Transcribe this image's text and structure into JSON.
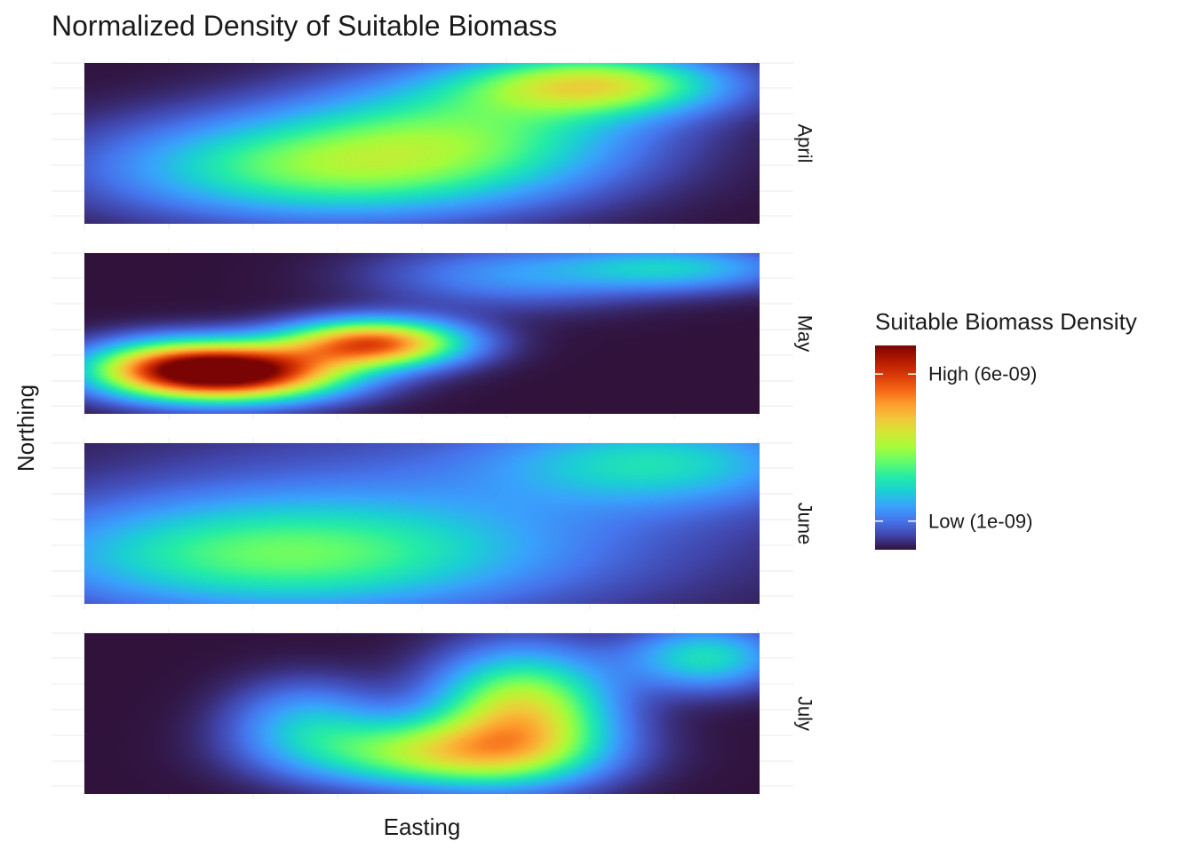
{
  "chart_data": {
    "type": "heatmap",
    "title": "Normalized Density of Suitable Biomass",
    "xlabel": "Easting",
    "ylabel": "Northing",
    "x_tick_labels_shown": false,
    "y_tick_labels_shown": false,
    "grid": true,
    "facets": [
      {
        "label": "April",
        "blobs": [
          {
            "cx": 0.76,
            "cy": 0.13,
            "sx": 0.13,
            "sy": 0.13,
            "amp": 0.5
          },
          {
            "cx": 0.36,
            "cy": 0.65,
            "sx": 0.22,
            "sy": 0.22,
            "amp": 0.43
          },
          {
            "cx": 0.58,
            "cy": 0.38,
            "sx": 0.18,
            "sy": 0.25,
            "amp": 0.3
          }
        ]
      },
      {
        "label": "May",
        "blobs": [
          {
            "cx": 0.23,
            "cy": 0.74,
            "sx": 0.11,
            "sy": 0.12,
            "amp": 0.97
          },
          {
            "cx": 0.43,
            "cy": 0.56,
            "sx": 0.09,
            "sy": 0.1,
            "amp": 0.78
          },
          {
            "cx": 0.12,
            "cy": 0.72,
            "sx": 0.09,
            "sy": 0.12,
            "amp": 0.45
          },
          {
            "cx": 0.88,
            "cy": 0.09,
            "sx": 0.12,
            "sy": 0.1,
            "amp": 0.26
          },
          {
            "cx": 0.63,
            "cy": 0.14,
            "sx": 0.14,
            "sy": 0.14,
            "amp": 0.18
          }
        ]
      },
      {
        "label": "June",
        "blobs": [
          {
            "cx": 0.28,
            "cy": 0.7,
            "sx": 0.25,
            "sy": 0.24,
            "amp": 0.37
          },
          {
            "cx": 0.85,
            "cy": 0.12,
            "sx": 0.16,
            "sy": 0.18,
            "amp": 0.26
          },
          {
            "cx": 0.55,
            "cy": 0.4,
            "sx": 0.35,
            "sy": 0.45,
            "amp": 0.12
          }
        ]
      },
      {
        "label": "July",
        "blobs": [
          {
            "cx": 0.65,
            "cy": 0.48,
            "sx": 0.09,
            "sy": 0.25,
            "amp": 0.57
          },
          {
            "cx": 0.53,
            "cy": 0.75,
            "sx": 0.14,
            "sy": 0.15,
            "amp": 0.5
          },
          {
            "cx": 0.33,
            "cy": 0.55,
            "sx": 0.08,
            "sy": 0.18,
            "amp": 0.22
          },
          {
            "cx": 0.92,
            "cy": 0.15,
            "sx": 0.08,
            "sy": 0.14,
            "amp": 0.32
          }
        ]
      }
    ],
    "legend": {
      "title": "Suitable Biomass Density",
      "placement": "right",
      "labels": [
        {
          "text": "High (6e-09)",
          "value": 0.86
        },
        {
          "text": "Low (1e-09)",
          "value": 0.14
        }
      ]
    },
    "colormap": [
      "#30123b",
      "#4145ab",
      "#4675ed",
      "#39a2fc",
      "#1bcfd4",
      "#24eca6",
      "#61fc6c",
      "#a4fc3b",
      "#d1e834",
      "#f3c63a",
      "#fe9b2d",
      "#f36315",
      "#d93806",
      "#b11901",
      "#7a0403"
    ]
  }
}
